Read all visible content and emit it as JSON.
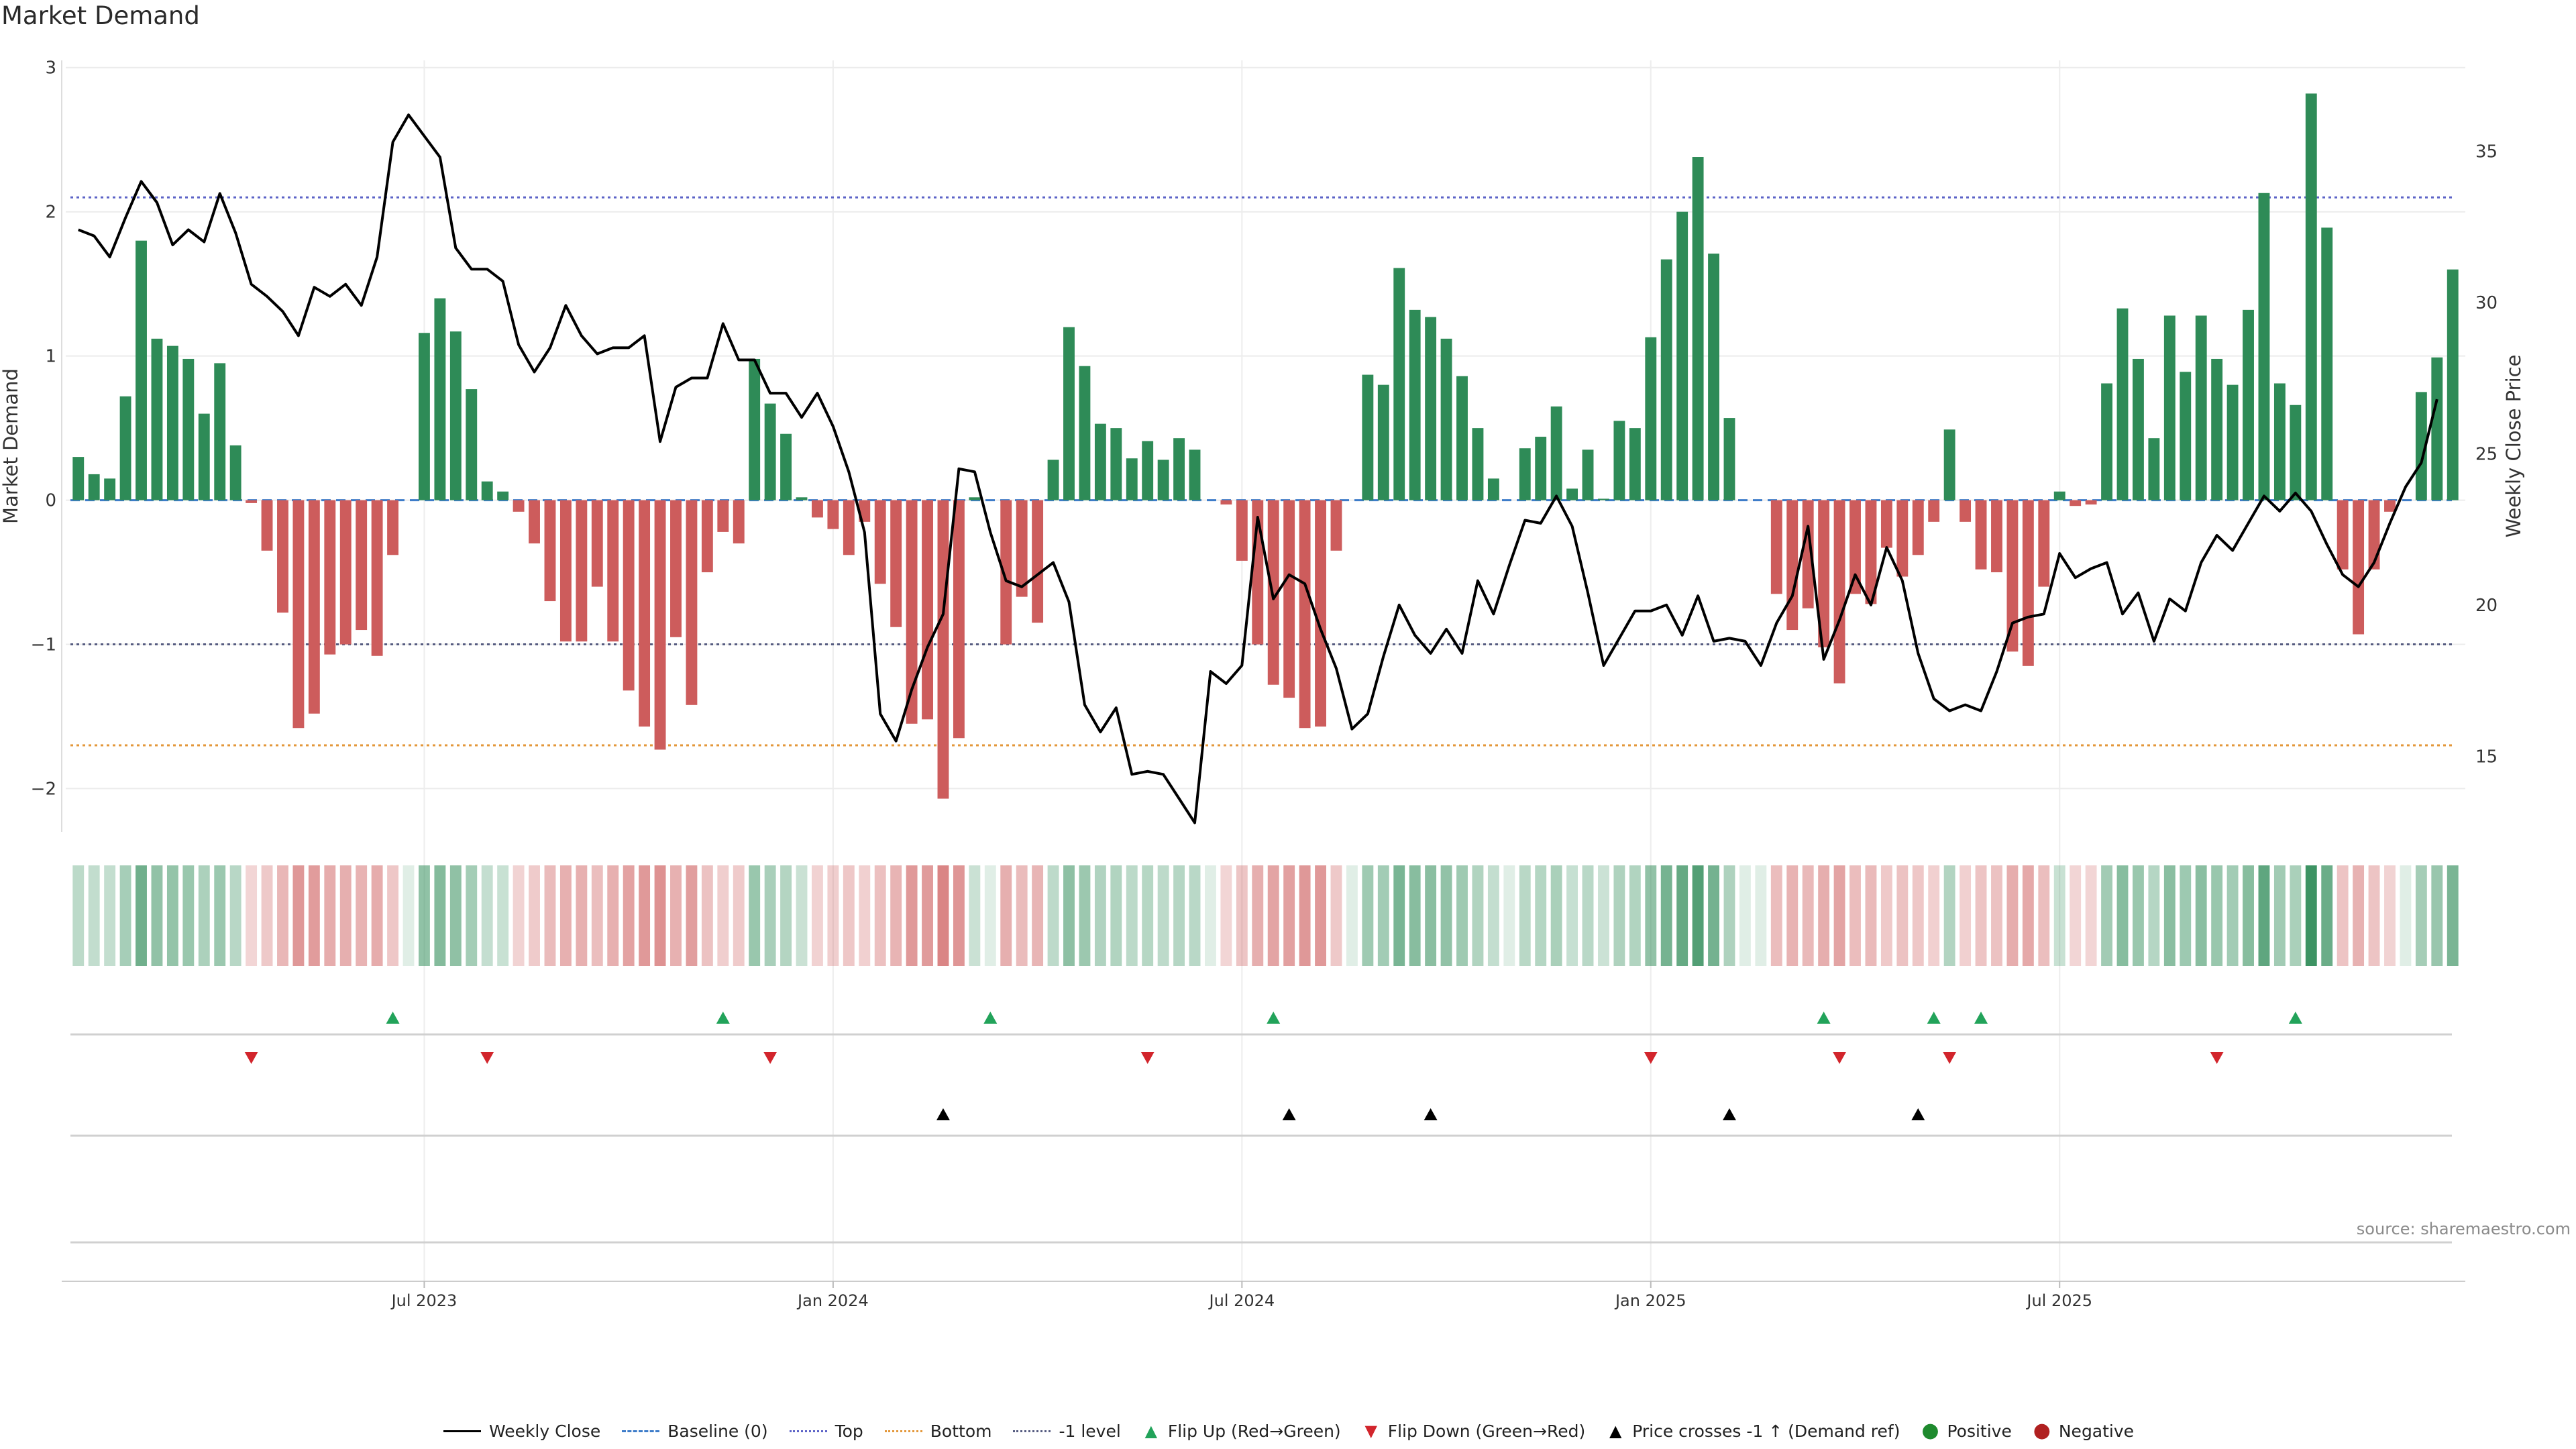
{
  "title": "Market Demand",
  "source": "source: sharemaestro.com",
  "colors": {
    "positive_bar": "#2e8b57",
    "negative_bar": "#cd5c5c",
    "price_line": "#000000",
    "top_line": "#5c63c7",
    "bottom_line": "#e3973a",
    "minus_one_line": "#555b80",
    "baseline": "#3d7cc9",
    "flip_up": "#22a35a",
    "flip_down": "#d2252c",
    "cross_marker": "#000000"
  },
  "legend": [
    {
      "label": "Weekly Close",
      "swatch": "line"
    },
    {
      "label": "Baseline (0)",
      "swatch": "dash"
    },
    {
      "label": "Top",
      "swatch": "dot-blue"
    },
    {
      "label": "Bottom",
      "swatch": "dot-orange"
    },
    {
      "label": "-1 level",
      "swatch": "dot-grey"
    },
    {
      "label": "Flip Up (Red→Green)",
      "swatch": "up"
    },
    {
      "label": "Flip Down (Green→Red)",
      "swatch": "down"
    },
    {
      "label": "Price crosses -1 ↑ (Demand ref)",
      "swatch": "black-up"
    },
    {
      "label": "Positive",
      "swatch": "pos"
    },
    {
      "label": "Negative",
      "swatch": "neg"
    }
  ],
  "chart_data": {
    "type": "bar",
    "title": "Market Demand",
    "ylabel": "Market Demand",
    "y2label": "Weekly Close Price",
    "ylim": [
      -2.3,
      3.05
    ],
    "y2lim": [
      12.5,
      38.0
    ],
    "yticks": [
      3,
      2,
      1,
      0,
      -1,
      -2
    ],
    "ytick_labels": [
      "3",
      "2",
      "1",
      "0",
      "−1",
      "−2"
    ],
    "y2ticks": [
      35,
      30,
      25,
      20,
      15
    ],
    "y2tick_labels": [
      "35",
      "30",
      "25",
      "20",
      "15"
    ],
    "xticks": [
      22,
      48,
      74,
      100,
      126
    ],
    "xtick_labels": [
      "Jul 2023",
      "Jan 2024",
      "Jul 2024",
      "Jan 2025",
      "Jul 2025"
    ],
    "reference_lines": {
      "baseline": 0,
      "top": 2.1,
      "bottom": -1.7,
      "minus_one": -1.0
    },
    "demand": [
      0.3,
      0.18,
      0.15,
      0.72,
      1.8,
      1.12,
      1.07,
      0.98,
      0.6,
      0.95,
      0.38,
      -0.02,
      -0.35,
      -0.78,
      -1.58,
      -1.48,
      -1.07,
      -1.0,
      -0.9,
      -1.08,
      -0.38,
      0,
      1.16,
      1.4,
      1.17,
      0.77,
      0.13,
      0.06,
      -0.08,
      -0.3,
      -0.7,
      -0.98,
      -0.98,
      -0.6,
      -0.98,
      -1.32,
      -1.57,
      -1.73,
      -0.95,
      -1.42,
      -0.5,
      -0.22,
      -0.3,
      0.98,
      0.67,
      0.46,
      0.02,
      -0.12,
      -0.2,
      -0.38,
      -0.15,
      -0.58,
      -0.88,
      -1.55,
      -1.52,
      -2.07,
      -1.65,
      0.02,
      0,
      -1.0,
      -0.67,
      -0.85,
      0.28,
      1.2,
      0.93,
      0.53,
      0.5,
      0.29,
      0.41,
      0.28,
      0.43,
      0.35,
      0,
      -0.03,
      -0.42,
      -1.0,
      -1.28,
      -1.37,
      -1.58,
      -1.57,
      -0.35,
      0,
      0.87,
      0.8,
      1.61,
      1.32,
      1.27,
      1.12,
      0.86,
      0.5,
      0.15,
      0,
      0.36,
      0.44,
      0.65,
      0.08,
      0.35,
      0.01,
      0.55,
      0.5,
      1.13,
      1.67,
      2.0,
      2.38,
      1.71,
      0.57,
      0,
      0,
      -0.65,
      -0.9,
      -0.75,
      -1.02,
      -1.27,
      -0.65,
      -0.72,
      -0.33,
      -0.53,
      -0.38,
      -0.15,
      0.49,
      -0.15,
      -0.48,
      -0.5,
      -1.05,
      -1.15,
      -0.6,
      0.06,
      -0.04,
      -0.03,
      0.81,
      1.33,
      0.98,
      0.43,
      1.28,
      0.89,
      1.28,
      0.98,
      0.8,
      1.32,
      2.13,
      0.81,
      0.66,
      2.82,
      1.89,
      -0.48,
      -0.93,
      -0.48,
      -0.08,
      0,
      0.75,
      0.99,
      1.6
    ],
    "price": [
      32.4,
      32.2,
      31.5,
      32.8,
      34.0,
      33.3,
      31.9,
      32.4,
      32.0,
      33.6,
      32.3,
      30.6,
      30.2,
      29.7,
      28.9,
      30.5,
      30.2,
      30.6,
      29.9,
      31.5,
      35.3,
      36.2,
      35.5,
      34.8,
      31.8,
      31.1,
      31.1,
      30.7,
      28.6,
      27.7,
      28.5,
      29.9,
      28.9,
      28.3,
      28.5,
      28.5,
      28.9,
      25.4,
      27.2,
      27.5,
      27.5,
      29.3,
      28.1,
      28.1,
      27.0,
      27.0,
      26.2,
      27.0,
      25.9,
      24.4,
      22.4,
      16.4,
      15.5,
      17.2,
      18.6,
      19.7,
      24.5,
      24.4,
      22.4,
      20.8,
      20.6,
      21.0,
      21.4,
      20.1,
      16.7,
      15.8,
      16.6,
      14.4,
      14.5,
      14.4,
      13.6,
      12.8,
      17.8,
      17.4,
      18.0,
      22.9,
      20.2,
      21.0,
      20.7,
      19.2,
      17.9,
      15.9,
      16.4,
      18.3,
      20.0,
      19.0,
      18.4,
      19.2,
      18.4,
      20.8,
      19.7,
      21.3,
      22.8,
      22.7,
      23.6,
      22.6,
      20.4,
      18.0,
      18.9,
      19.8,
      19.8,
      20.0,
      19.0,
      20.3,
      18.8,
      18.9,
      18.8,
      18.0,
      19.4,
      20.3,
      22.6,
      18.2,
      19.5,
      21.0,
      20.0,
      21.9,
      20.8,
      18.4,
      16.9,
      16.5,
      16.7,
      16.5,
      17.8,
      19.4,
      19.6,
      19.7,
      21.7,
      20.9,
      21.2,
      21.4,
      19.7,
      20.4,
      18.8,
      20.2,
      19.8,
      21.4,
      22.3,
      21.8,
      22.7,
      23.6,
      23.1,
      23.7,
      23.1,
      22.0,
      21.0,
      20.6,
      21.4,
      22.7,
      23.9,
      24.7,
      26.8
    ]
  },
  "heat_strip": {
    "label": "Demand intensity strip"
  },
  "flip_up_weeks": [
    20,
    41,
    58,
    76,
    111,
    118,
    121,
    141
  ],
  "flip_down_weeks": [
    11,
    26,
    44,
    68,
    100,
    112,
    119,
    136
  ],
  "price_cross_weeks": [
    55,
    77,
    86,
    105,
    117
  ]
}
